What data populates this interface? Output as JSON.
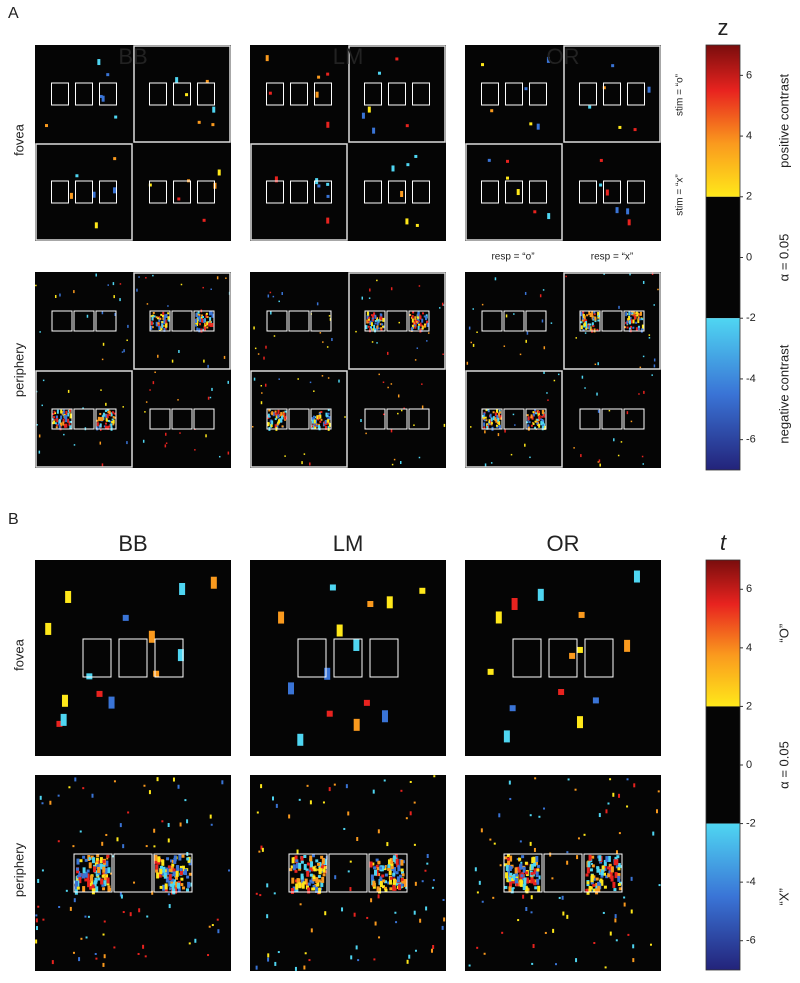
{
  "panel_a": {
    "label": "A",
    "columns": [
      "BB",
      "LM",
      "OR"
    ],
    "rows": [
      "fovea",
      "periphery"
    ],
    "stim_labels": [
      "stim = “o”",
      "stim = “x”"
    ],
    "resp_labels": [
      "resp = “o”",
      "resp = “x”"
    ],
    "colorbar": {
      "title": "z",
      "upper_label": "positive contrast",
      "middle_label": "α = 0.05",
      "lower_label": "negative contrast",
      "lim": [
        -7,
        7
      ],
      "ticks": [
        6,
        4,
        2,
        0,
        -2,
        -4,
        -6
      ],
      "threshold": [
        -2,
        2
      ]
    }
  },
  "panel_b": {
    "label": "B",
    "columns": [
      "BB",
      "LM",
      "OR"
    ],
    "rows": [
      "fovea",
      "periphery"
    ],
    "colorbar": {
      "title": "t",
      "upper_label": "“O”",
      "middle_label": "α = 0.05",
      "lower_label": "“X”",
      "lim": [
        -7,
        7
      ],
      "ticks": [
        6,
        4,
        2,
        0,
        -2,
        -4,
        -6
      ],
      "threshold": [
        -2,
        2
      ]
    }
  }
}
